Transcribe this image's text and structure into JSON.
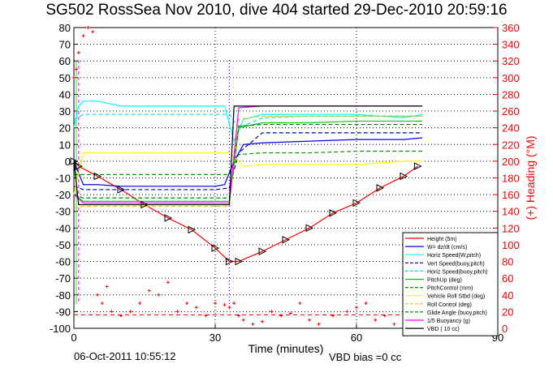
{
  "title": "SG502 RossSea Nov 2010, dive 404 started 29-Dec-2010 20:59:16",
  "footer": {
    "timestamp": "06-Oct-2011 10:55:12",
    "vbd_bias": "VBD bias =0 cc"
  },
  "chart_data": {
    "type": "line",
    "xlabel": "Time (minutes)",
    "ylabel_left": "",
    "ylabel_right": "(+) Heading (°M)",
    "xlim": [
      0,
      90
    ],
    "ylim": [
      -100,
      80
    ],
    "ylim_right": [
      0,
      360
    ],
    "xticks": [
      0,
      30,
      60,
      90
    ],
    "yticks": [
      -100,
      -90,
      -80,
      -70,
      -60,
      -50,
      -40,
      -30,
      -20,
      -10,
      0,
      10,
      20,
      30,
      40,
      50,
      60,
      70,
      80
    ],
    "yticks_right": [
      0,
      20,
      40,
      60,
      80,
      100,
      120,
      140,
      160,
      180,
      200,
      220,
      240,
      260,
      280,
      300,
      320,
      340,
      360
    ],
    "grid": true,
    "legend_position": "bottom-right",
    "colors": {
      "height": "#ff0000",
      "w": "#0000ff",
      "horz_w": "#00ffff",
      "vert_buoy": "#0000aa",
      "horz_buoy": "#00e5e5",
      "pitch_up": "#00cc00",
      "pitch_ctrl": "#009900",
      "roll_stbd": "#ffff00",
      "roll_ctrl": "#e6c800",
      "glide": "#008800",
      "buoy": "#ff00ff",
      "vbd": "#000000",
      "heading": "#ff0000"
    },
    "series": [
      {
        "name": "Height (5m)",
        "key": "height",
        "style": "solid",
        "x": [
          0,
          1,
          5,
          10,
          15,
          20,
          25,
          30,
          33,
          35,
          40,
          45,
          50,
          55,
          60,
          65,
          70,
          73
        ],
        "y": [
          0,
          -3,
          -9,
          -17,
          -26,
          -34,
          -41,
          -52,
          -60,
          -60,
          -54,
          -47,
          -40,
          -31,
          -25,
          -16,
          -9,
          -3
        ]
      },
      {
        "name": "W= dz/dt (cm/s)",
        "key": "w",
        "style": "solid",
        "x": [
          0,
          2,
          5,
          10,
          15,
          20,
          25,
          30,
          32,
          34,
          36,
          40,
          50,
          60,
          70,
          74
        ],
        "y": [
          0,
          -14,
          -14,
          -15,
          -15,
          -15,
          -15,
          -15,
          -14,
          0,
          10,
          11,
          12,
          13,
          13,
          14
        ]
      },
      {
        "name": "Horiz Speed(W,pitch)",
        "key": "horz_w",
        "style": "solid",
        "x": [
          0,
          1,
          2,
          5,
          10,
          15,
          20,
          25,
          30,
          32,
          34,
          36,
          40,
          50,
          60,
          70,
          74
        ],
        "y": [
          20,
          33,
          36,
          36,
          33,
          33,
          33,
          33,
          33,
          33,
          12,
          25,
          28,
          28,
          28,
          26,
          28
        ]
      },
      {
        "name": "Vert Speed(buoy,pitch)",
        "key": "vert_buoy",
        "style": "dashed",
        "x": [
          0,
          2,
          10,
          20,
          30,
          33,
          35,
          40,
          50,
          60,
          70,
          74
        ],
        "y": [
          -15,
          -17,
          -17,
          -17,
          -17,
          -16,
          5,
          17,
          17,
          17,
          17,
          17
        ]
      },
      {
        "name": "Horiz Speed(buoy,pitch)",
        "key": "horz_buoy",
        "style": "dashed",
        "x": [
          0,
          2,
          10,
          20,
          30,
          33,
          35,
          40,
          50,
          60,
          70,
          74
        ],
        "y": [
          25,
          28,
          28,
          28,
          28,
          28,
          20,
          26,
          27,
          27,
          27,
          27
        ]
      },
      {
        "name": "PitchUp (deg)",
        "key": "pitch_up",
        "style": "solid",
        "x": [
          0,
          2,
          10,
          20,
          30,
          33,
          35,
          40,
          50,
          60,
          70,
          74
        ],
        "y": [
          -20,
          -24,
          -24,
          -24,
          -24,
          -24,
          20,
          23,
          23,
          24,
          24,
          24
        ]
      },
      {
        "name": "PitchControl (mm)",
        "key": "pitch_ctrl",
        "style": "dashed",
        "x": [
          0,
          2,
          10,
          20,
          30,
          33,
          35,
          40,
          50,
          60,
          70,
          74
        ],
        "y": [
          -8,
          -8,
          -8,
          -8,
          -8,
          -8,
          4,
          5,
          5,
          6,
          6,
          6
        ]
      },
      {
        "name": "Vehicle Roll Stbd (deg)",
        "key": "roll_stbd",
        "style": "solid",
        "x": [
          0,
          2,
          5,
          10,
          15,
          20,
          25,
          30,
          33,
          36,
          40,
          50,
          60,
          70,
          74
        ],
        "y": [
          -20,
          5,
          5,
          5,
          5,
          5,
          5,
          5,
          5,
          -3,
          -2,
          -2,
          -2,
          0,
          0
        ]
      },
      {
        "name": "Roll Control (deg)",
        "key": "roll_ctrl",
        "style": "dashed",
        "x": [
          0,
          2,
          10,
          20,
          30,
          33,
          35,
          40,
          50,
          60,
          70,
          74
        ],
        "y": [
          -28,
          -27,
          -27,
          -27,
          -27,
          -27,
          25,
          27,
          27,
          27,
          27,
          27
        ]
      },
      {
        "name": "Glide Angle (buoy,pitch)",
        "key": "glide",
        "style": "dashed",
        "x": [
          0,
          2,
          10,
          20,
          30,
          33,
          35,
          40,
          50,
          60,
          70,
          74
        ],
        "y": [
          -20,
          -22,
          -22,
          -22,
          -22,
          -22,
          21,
          22,
          22,
          22,
          22,
          22
        ]
      },
      {
        "name": "1/5 Buoyancy (g)",
        "key": "buoy",
        "style": "solid",
        "x": [
          0,
          2,
          10,
          20,
          30,
          33,
          35,
          40,
          50,
          60,
          70,
          74
        ],
        "y": [
          -20,
          -25,
          -25,
          -25,
          -25,
          -25,
          32,
          33,
          33,
          33,
          33,
          33
        ]
      },
      {
        "name": "VBD ( 10 cc)",
        "key": "vbd",
        "style": "solid",
        "x": [
          0,
          1,
          33,
          34,
          74
        ],
        "y": [
          0,
          -26,
          -26,
          33,
          33
        ]
      }
    ],
    "heading_series": {
      "name": "Heading",
      "axis": "right",
      "marker": "+",
      "x": [
        0,
        0.5,
        1,
        2,
        3,
        4,
        5,
        6,
        7,
        8,
        10,
        12,
        14,
        16,
        18,
        20,
        22,
        24,
        26,
        28,
        30,
        32,
        33,
        34,
        35,
        36,
        38,
        40,
        42,
        44,
        46,
        48,
        50,
        52,
        55,
        58,
        60,
        62,
        64,
        66,
        68,
        70,
        72,
        74
      ],
      "y": [
        300,
        310,
        330,
        350,
        360,
        355,
        40,
        30,
        50,
        20,
        15,
        20,
        30,
        45,
        40,
        55,
        20,
        30,
        25,
        15,
        30,
        28,
        25,
        30,
        15,
        10,
        5,
        8,
        20,
        15,
        18,
        30,
        10,
        5,
        15,
        20,
        25,
        30,
        10,
        15,
        5,
        20,
        10,
        5
      ]
    },
    "vertical_markers": [
      {
        "x": 1,
        "color": "#ff00ff",
        "style": "dashed"
      },
      {
        "x": 33,
        "color": "#0000ff",
        "style": "dotted"
      },
      {
        "x": 0.5,
        "color": "#00ff00",
        "style": "solid"
      }
    ],
    "horizontal_markers": [
      {
        "y": -92,
        "color": "#ff0000",
        "style": "dashed"
      }
    ]
  }
}
